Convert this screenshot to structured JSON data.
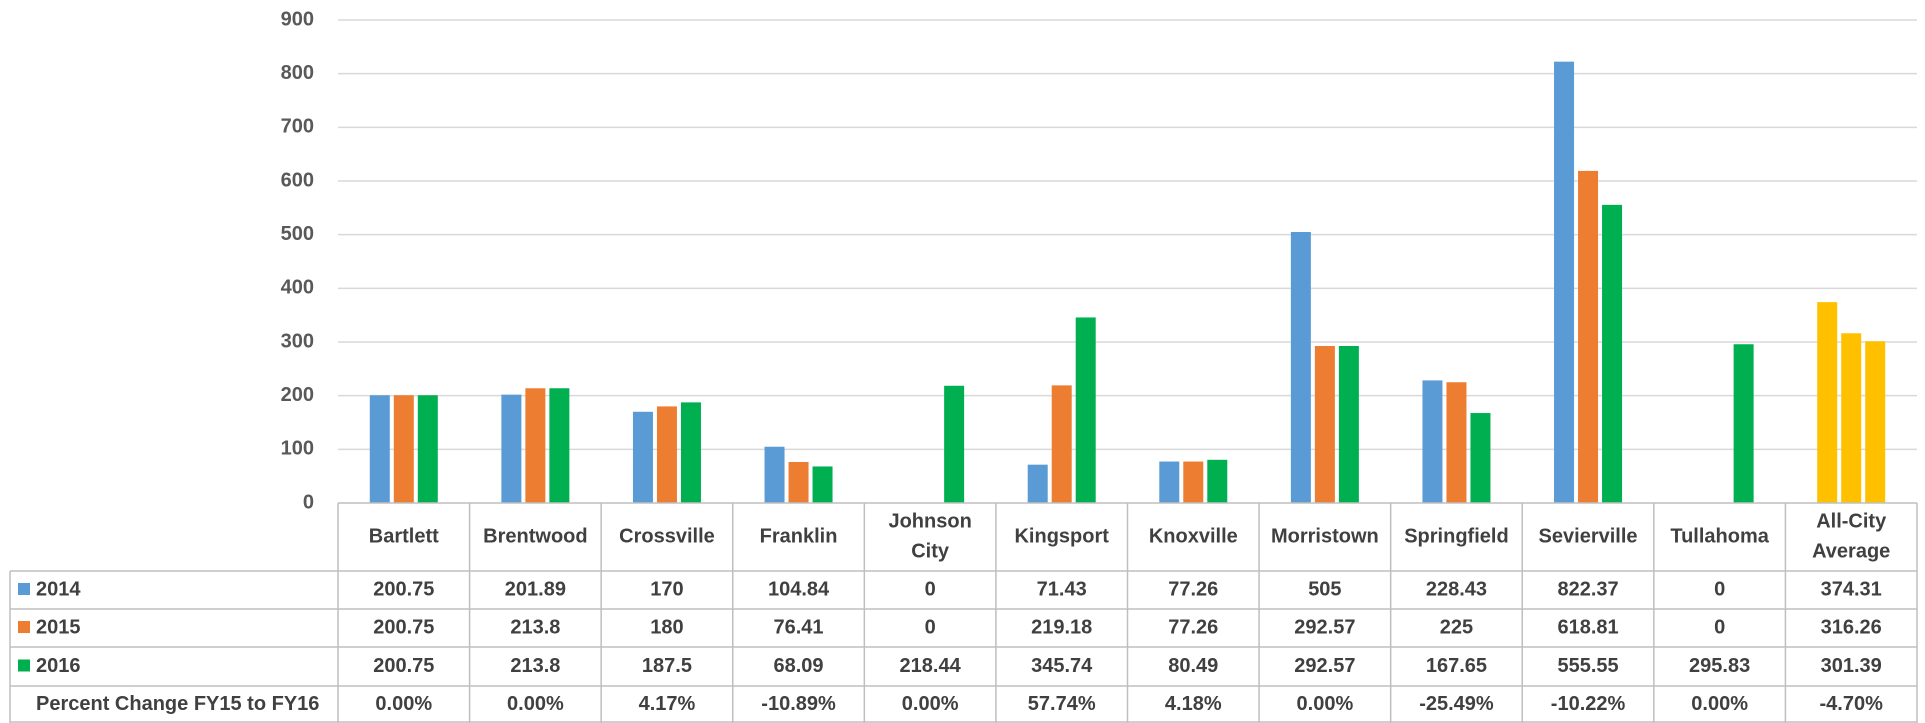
{
  "colors": {
    "s2014": "#5B9BD5",
    "s2015": "#ED7D31",
    "s2016": "#00B050",
    "average": "#FFC000",
    "grid": "#D9D9D9",
    "table_border": "#BFBFBF",
    "text": "#404040"
  },
  "chart_data": {
    "type": "bar",
    "title": "",
    "xlabel": "",
    "ylabel": "",
    "ylim": [
      0,
      900
    ],
    "yticks": [
      "0",
      "100",
      "200",
      "300",
      "400",
      "500",
      "600",
      "700",
      "800",
      "900"
    ],
    "grid": true,
    "legend": "table-left",
    "categories": [
      [
        "Bartlett"
      ],
      [
        "Brentwood"
      ],
      [
        "Crossville"
      ],
      [
        "Franklin"
      ],
      [
        "Johnson",
        "City"
      ],
      [
        "Kingsport"
      ],
      [
        "Knoxville"
      ],
      [
        "Morristown"
      ],
      [
        "Springfield"
      ],
      [
        "Sevierville"
      ],
      [
        "Tullahoma"
      ],
      [
        "All-City",
        "Average"
      ]
    ],
    "series": [
      {
        "name": "2014",
        "values": [
          200.75,
          201.89,
          170,
          104.84,
          0,
          71.43,
          77.26,
          505,
          228.43,
          822.37,
          0,
          374.31
        ],
        "labels": [
          "200.75",
          "201.89",
          "170",
          "104.84",
          "0",
          "71.43",
          "77.26",
          "505",
          "228.43",
          "822.37",
          "0",
          "374.31"
        ]
      },
      {
        "name": "2015",
        "values": [
          200.75,
          213.8,
          180,
          76.41,
          0,
          219.18,
          77.26,
          292.57,
          225,
          618.81,
          0,
          316.26
        ],
        "labels": [
          "200.75",
          "213.8",
          "180",
          "76.41",
          "0",
          "219.18",
          "77.26",
          "292.57",
          "225",
          "618.81",
          "0",
          "316.26"
        ]
      },
      {
        "name": "2016",
        "values": [
          200.75,
          213.8,
          187.5,
          68.09,
          218.44,
          345.74,
          80.49,
          292.57,
          167.65,
          555.55,
          295.83,
          301.39
        ],
        "labels": [
          "200.75",
          "213.8",
          "187.5",
          "68.09",
          "218.44",
          "345.74",
          "80.49",
          "292.57",
          "167.65",
          "555.55",
          "295.83",
          "301.39"
        ]
      }
    ],
    "extra_row": {
      "label": "Percent Change FY15 to FY16",
      "values": [
        "0.00%",
        "0.00%",
        "4.17%",
        "-10.89%",
        "0.00%",
        "57.74%",
        "4.18%",
        "0.00%",
        "-25.49%",
        "-10.22%",
        "0.00%",
        "-4.70%"
      ]
    }
  }
}
